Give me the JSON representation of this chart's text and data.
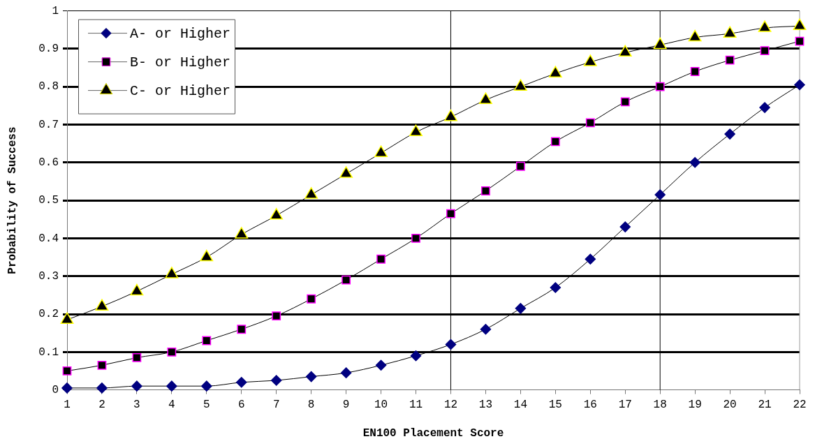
{
  "chart_data": {
    "type": "line",
    "xlabel": "EN100 Placement Score",
    "ylabel": "Probability of Success",
    "x": [
      1,
      2,
      3,
      4,
      5,
      6,
      7,
      8,
      9,
      10,
      11,
      12,
      13,
      14,
      15,
      16,
      17,
      18,
      19,
      20,
      21,
      22
    ],
    "xlim": [
      1,
      22
    ],
    "xticks": [
      1,
      2,
      3,
      4,
      5,
      6,
      7,
      8,
      9,
      10,
      11,
      12,
      13,
      14,
      15,
      16,
      17,
      18,
      19,
      20,
      21,
      22
    ],
    "series": [
      {
        "name": "A- or Higher",
        "color": "#000080",
        "marker": "diamond",
        "values": [
          0.005,
          0.005,
          0.01,
          0.01,
          0.01,
          0.02,
          0.025,
          0.035,
          0.045,
          0.065,
          0.09,
          0.12,
          0.16,
          0.215,
          0.27,
          0.345,
          0.43,
          0.515,
          0.6,
          0.675,
          0.745,
          0.805
        ]
      },
      {
        "name": "B- or Higher",
        "color": "#000000",
        "marker": "square",
        "values": [
          0.05,
          0.065,
          0.085,
          0.1,
          0.13,
          0.16,
          0.195,
          0.24,
          0.29,
          0.345,
          0.4,
          0.465,
          0.525,
          0.59,
          0.655,
          0.705,
          0.76,
          0.8,
          0.84,
          0.87,
          0.895,
          0.92
        ]
      },
      {
        "name": "C- or Higher",
        "color": "#000000",
        "marker": "triangle",
        "values": [
          0.185,
          0.22,
          0.26,
          0.305,
          0.35,
          0.41,
          0.46,
          0.515,
          0.57,
          0.625,
          0.68,
          0.72,
          0.765,
          0.8,
          0.835,
          0.865,
          0.89,
          0.91,
          0.93,
          0.94,
          0.955,
          0.96
        ]
      }
    ],
    "ylim": [
      0,
      1
    ],
    "yticks": [
      0,
      0.1,
      0.2,
      0.3,
      0.4,
      0.5,
      0.6,
      0.7,
      0.8,
      0.9,
      1
    ],
    "grid": "y",
    "legend": "top left",
    "line_style": "solid",
    "ref_lines": [
      {
        "axis": "x",
        "value": 12,
        "color": "#000000"
      },
      {
        "axis": "x",
        "value": 18,
        "color": "#000000"
      }
    ]
  }
}
